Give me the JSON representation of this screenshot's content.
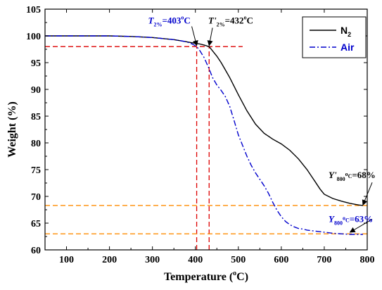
{
  "chart_data": {
    "type": "line",
    "xlabel": {
      "main": "Temperature (",
      "sup": "o",
      "rest": "C)"
    },
    "ylabel": "Weight (%)",
    "xlim": [
      50,
      800
    ],
    "ylim": [
      60,
      105
    ],
    "xticks": [
      100,
      200,
      300,
      400,
      500,
      600,
      700,
      800
    ],
    "yticks": [
      60,
      65,
      70,
      75,
      80,
      85,
      90,
      95,
      100,
      105
    ],
    "legend": {
      "placement": "top-right"
    },
    "series": [
      {
        "name": "N",
        "name_sub": "2",
        "color": "#000000",
        "style": "solid",
        "x": [
          50,
          100,
          150,
          200,
          250,
          300,
          350,
          380,
          400,
          410,
          420,
          432,
          440,
          450,
          460,
          470,
          480,
          490,
          500,
          520,
          540,
          560,
          580,
          600,
          620,
          640,
          660,
          670,
          680,
          690,
          700,
          720,
          740,
          760,
          780,
          790
        ],
        "y": [
          100,
          100,
          100,
          100,
          99.9,
          99.7,
          99.3,
          98.9,
          98.6,
          98.5,
          98.3,
          98.0,
          97.2,
          96.2,
          95.0,
          93.6,
          92.2,
          90.6,
          89.0,
          86.0,
          83.5,
          81.8,
          80.7,
          79.8,
          78.6,
          77.0,
          75.0,
          73.8,
          72.6,
          71.4,
          70.4,
          69.6,
          69.1,
          68.7,
          68.4,
          68.3
        ]
      },
      {
        "name": "Air",
        "color": "#0000cc",
        "style": "dashdot",
        "x": [
          50,
          100,
          150,
          200,
          250,
          300,
          350,
          380,
          395,
          403,
          410,
          420,
          430,
          440,
          450,
          460,
          470,
          480,
          490,
          500,
          510,
          520,
          530,
          540,
          550,
          560,
          570,
          580,
          590,
          600,
          610,
          620,
          630,
          640,
          650,
          660,
          680,
          700,
          720,
          740,
          760,
          780,
          790
        ],
        "y": [
          100,
          100,
          100,
          100,
          99.9,
          99.7,
          99.3,
          98.9,
          98.4,
          98.0,
          97.3,
          96.0,
          94.2,
          92.2,
          90.8,
          89.8,
          88.6,
          86.8,
          84.2,
          81.5,
          79.5,
          77.5,
          75.8,
          74.4,
          73.2,
          72.0,
          70.6,
          68.9,
          67.4,
          66.2,
          65.3,
          64.7,
          64.3,
          64.0,
          63.9,
          63.7,
          63.5,
          63.3,
          63.1,
          63.0,
          62.9,
          62.9,
          62.9
        ]
      }
    ],
    "reference_lines": [
      {
        "orientation": "horizontal",
        "value": 98,
        "x_range": [
          50,
          510
        ],
        "color": "#dd0000"
      },
      {
        "orientation": "vertical",
        "value": 403,
        "color": "#dd0000"
      },
      {
        "orientation": "vertical",
        "value": 432,
        "color": "#dd0000"
      },
      {
        "orientation": "horizontal",
        "value": 68.3,
        "color": "#ff8c00"
      },
      {
        "orientation": "horizontal",
        "value": 63,
        "color": "#ff8c00"
      }
    ],
    "annotations": [
      {
        "id": "t2-air",
        "main": "T",
        "sub": "2%",
        "rest": "=403",
        "sup": "o",
        "tail": "C",
        "color": "#0000cc",
        "arrow_to": [
          403,
          98.2
        ],
        "text_at": [
          290,
          102.3
        ]
      },
      {
        "id": "t2-n2",
        "main": "T'",
        "sub": "2%",
        "rest": "=432",
        "sup": "o",
        "tail": "C",
        "color": "#000000",
        "arrow_to": [
          432,
          98.2
        ],
        "text_at": [
          430,
          102.3
        ]
      },
      {
        "id": "y800-n2",
        "main": "Y'",
        "sub": "800",
        "sup": "o",
        "tail": "C",
        "rest": "=68%",
        "color": "#000000",
        "arrow_to": [
          790,
          68.4
        ],
        "text_at": [
          710,
          73.4
        ]
      },
      {
        "id": "y800-air",
        "main": "Y",
        "sub": "800",
        "sup": "o",
        "tail": "C",
        "rest": "=63%",
        "color": "#0000cc",
        "arrow_to": [
          760,
          63.3
        ],
        "text_at": [
          710,
          65.2
        ]
      }
    ]
  }
}
